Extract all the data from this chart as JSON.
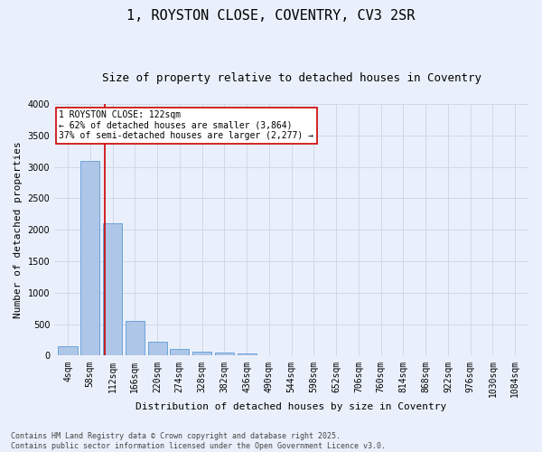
{
  "title": "1, ROYSTON CLOSE, COVENTRY, CV3 2SR",
  "subtitle": "Size of property relative to detached houses in Coventry",
  "xlabel": "Distribution of detached houses by size in Coventry",
  "ylabel": "Number of detached properties",
  "bin_labels": [
    "4sqm",
    "58sqm",
    "112sqm",
    "166sqm",
    "220sqm",
    "274sqm",
    "328sqm",
    "382sqm",
    "436sqm",
    "490sqm",
    "544sqm",
    "598sqm",
    "652sqm",
    "706sqm",
    "760sqm",
    "814sqm",
    "868sqm",
    "922sqm",
    "976sqm",
    "1030sqm",
    "1084sqm"
  ],
  "bar_values": [
    150,
    3100,
    2100,
    550,
    220,
    100,
    70,
    50,
    30,
    0,
    0,
    0,
    0,
    0,
    0,
    0,
    0,
    0,
    0,
    0,
    0
  ],
  "bar_color": "#aec6e8",
  "bar_edge_color": "#5b9bd5",
  "grid_color": "#d0d8e8",
  "background_color": "#eaf0fb",
  "vline_color": "#cc0000",
  "annotation_text": "1 ROYSTON CLOSE: 122sqm\n← 62% of detached houses are smaller (3,864)\n37% of semi-detached houses are larger (2,277) →",
  "annotation_box_color": "#ffffff",
  "annotation_box_edge": "#cc0000",
  "ylim": [
    0,
    4000
  ],
  "yticks": [
    0,
    500,
    1000,
    1500,
    2000,
    2500,
    3000,
    3500,
    4000
  ],
  "footnote": "Contains HM Land Registry data © Crown copyright and database right 2025.\nContains public sector information licensed under the Open Government Licence v3.0.",
  "title_fontsize": 11,
  "subtitle_fontsize": 9,
  "label_fontsize": 8,
  "tick_fontsize": 7
}
